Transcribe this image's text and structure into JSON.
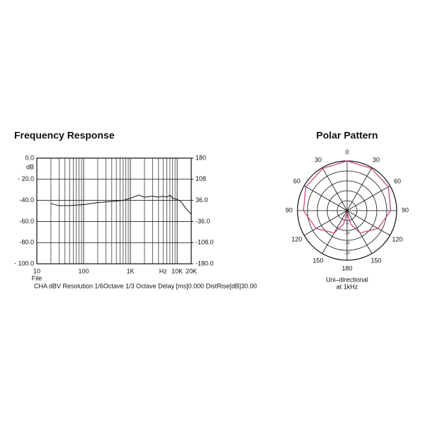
{
  "chart_data": [
    {
      "type": "line",
      "title": "Frequency Response",
      "log_x": true,
      "xlim": [
        10,
        20000
      ],
      "xticks": [
        10,
        100,
        {
          "value": 1000,
          "label": "1K"
        },
        {
          "value": 10000,
          "label": "10K"
        },
        {
          "value": 20000,
          "label": "20K"
        }
      ],
      "xgrid": [
        20,
        30,
        40,
        50,
        60,
        70,
        80,
        90,
        200,
        300,
        400,
        500,
        600,
        700,
        800,
        900,
        2000,
        3000,
        4000,
        5000,
        6000,
        7000,
        8000,
        9000
      ],
      "xlabel": "Hz",
      "xlabel_at": 5000,
      "file_label": "File",
      "ylabel": "dB",
      "ylim": [
        -100,
        0
      ],
      "yticks": [
        {
          "value": 0,
          "label": "0.0"
        },
        {
          "value": -20,
          "label": "- 20.0"
        },
        {
          "value": -40,
          "label": "-40.0"
        },
        {
          "value": -60,
          "label": "-60.0"
        },
        {
          "value": -80,
          "label": "-80.0"
        },
        {
          "value": -100,
          "label": "- 100.0"
        }
      ],
      "y2lim": [
        -180,
        180
      ],
      "y2ticks": [
        180,
        108,
        {
          "value": 36,
          "label": "36.0"
        },
        {
          "value": -36,
          "label": "-36.0"
        },
        {
          "value": -108,
          "label": "-108.0"
        },
        {
          "value": -180,
          "label": "-180.0"
        }
      ],
      "grid": true,
      "x": [
        20,
        30,
        50,
        100,
        200,
        400,
        700,
        1000,
        1500,
        2000,
        3000,
        4000,
        5000,
        6000,
        7000,
        8000,
        10000,
        12000,
        15000,
        20000
      ],
      "series": [
        {
          "color": "#111111",
          "values": [
            -43,
            -45,
            -45,
            -44,
            -42,
            -41,
            -40,
            -38,
            -35,
            -37,
            -36,
            -37,
            -36,
            -37,
            -35,
            -38,
            -39,
            -41,
            -47,
            -53
          ]
        }
      ],
      "footer": "CHA dBV Resolution 1/6Octave 1/3 Octave Delay [ms]0.000 DistRise[dB]30.00"
    },
    {
      "type": "polar",
      "title": "Polar Pattern",
      "rlim": [
        -25,
        0
      ],
      "rticks": [
        0,
        -5,
        -10,
        -15,
        -20
      ],
      "thetaticks": [
        0,
        30,
        60,
        90,
        120,
        150,
        180,
        {
          "value": 210,
          "label": "150"
        },
        {
          "value": 240,
          "label": "120"
        },
        {
          "value": 270,
          "label": "90"
        },
        {
          "value": 300,
          "label": "60"
        },
        {
          "value": 330,
          "label": "30"
        }
      ],
      "angles": [
        0,
        30,
        60,
        90,
        120,
        150,
        165,
        180,
        195,
        210,
        240,
        270,
        300,
        330,
        360
      ],
      "series": [
        {
          "color": "#c0397b",
          "values": [
            0,
            -0.5,
            -1,
            -3,
            -7,
            -12,
            -18,
            -24,
            -18,
            -12,
            -7,
            -3,
            -1,
            -0.5,
            0
          ]
        }
      ],
      "caption": [
        "Uni–directional",
        "at 1kHz"
      ]
    }
  ]
}
